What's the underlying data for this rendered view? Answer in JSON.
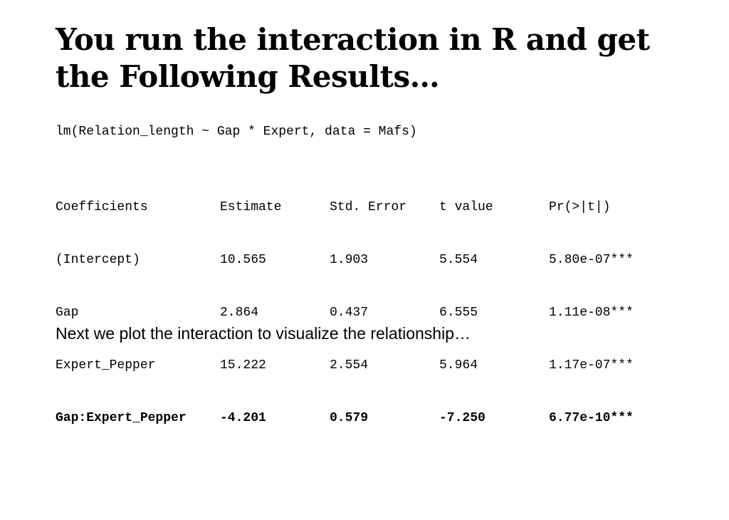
{
  "title": {
    "line1": "You run the interaction in R and get",
    "line2": "the Following Results…"
  },
  "formula": "lm(Relation_length ~ Gap * Expert, data = Mafs)",
  "coefficients": {
    "header": [
      "Coefficients",
      "Estimate",
      "Std. Error",
      "t value",
      "Pr(>|t|)"
    ],
    "rows": [
      [
        "(Intercept)",
        "10.565",
        "1.903",
        "5.554",
        "5.80e-07***"
      ],
      [
        "Gap",
        "2.864",
        "0.437",
        "6.555",
        "1.11e-08***"
      ],
      [
        "Expert_Pepper",
        "15.222",
        "2.554",
        "5.964",
        "1.17e-07***"
      ],
      [
        "Gap:Expert_Pepper",
        "-4.201",
        "0.579",
        "-7.250",
        "6.77e-10***"
      ]
    ]
  },
  "caption": "Next we plot the interaction to visualize the relationship…"
}
